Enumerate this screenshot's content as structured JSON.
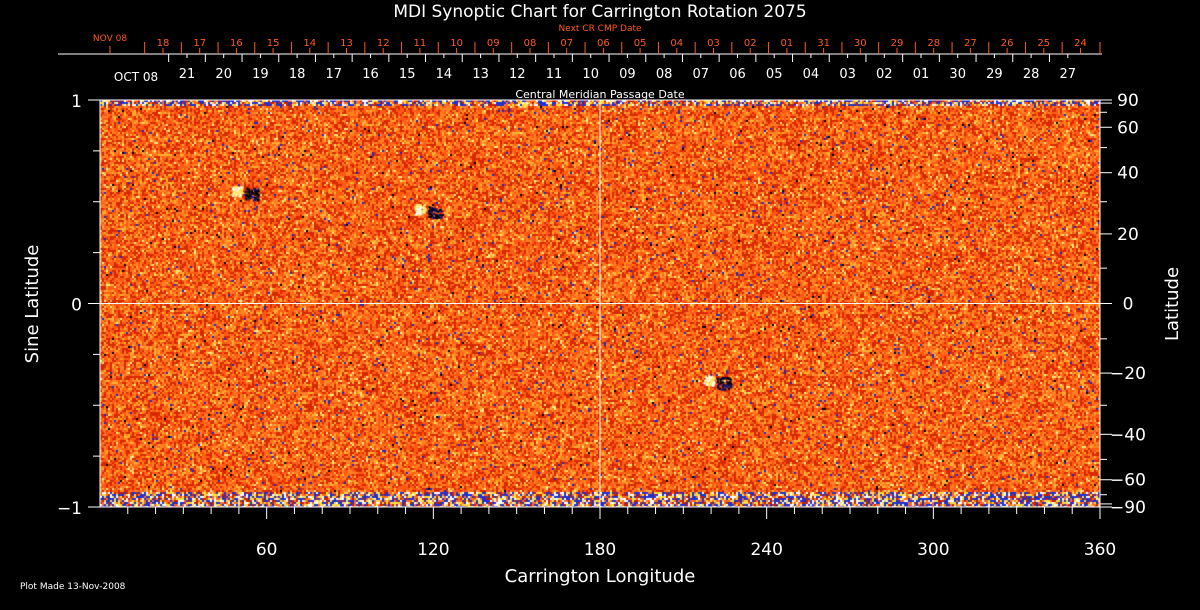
{
  "chart_data": {
    "type": "heatmap",
    "title": "MDI Synoptic Chart for Carrington Rotation 2075",
    "xlabel": "Carrington Longitude",
    "ylabel_left": "Sine Latitude",
    "ylabel_right": "Latitude",
    "xlim": [
      0,
      360
    ],
    "ylim": [
      -1,
      1
    ],
    "x_ticks": [
      60,
      120,
      180,
      240,
      300,
      360
    ],
    "y_ticks_left": [
      {
        "value": 1,
        "label": "1"
      },
      {
        "value": 0,
        "label": "0"
      },
      {
        "value": -1,
        "label": "−1"
      }
    ],
    "y_ticks_right": [
      {
        "value": 90,
        "label": "90"
      },
      {
        "value": 60,
        "label": "60"
      },
      {
        "value": 40,
        "label": "40"
      },
      {
        "value": 20,
        "label": "20"
      },
      {
        "value": 0,
        "label": "0"
      },
      {
        "value": -20,
        "label": "−20"
      },
      {
        "value": -40,
        "label": "−40"
      },
      {
        "value": -60,
        "label": "−60"
      },
      {
        "value": -90,
        "label": "−90"
      }
    ],
    "top_axis_next_cr": {
      "title": "Next CR CMP Date",
      "month_label": "NOV 08",
      "labels": [
        "18",
        "17",
        "16",
        "15",
        "14",
        "13",
        "12",
        "11",
        "10",
        "09",
        "08",
        "07",
        "06",
        "05",
        "04",
        "03",
        "02",
        "01",
        "31",
        "30",
        "29",
        "28",
        "27",
        "26",
        "25",
        "24"
      ],
      "color": "#ff5a1e"
    },
    "top_axis_cmp": {
      "title": "Central Meridian Passage Date",
      "month_label": "OCT 08",
      "labels": [
        "21",
        "20",
        "19",
        "18",
        "17",
        "16",
        "15",
        "14",
        "13",
        "12",
        "11",
        "10",
        "09",
        "08",
        "07",
        "06",
        "05",
        "04",
        "03",
        "02",
        "01",
        "30",
        "29",
        "28",
        "27"
      ],
      "color": "#ffffff"
    },
    "grid": "center cross lines at longitude 180 and latitude 0",
    "colormap": [
      "#000000",
      "#2222c8",
      "#c81e00",
      "#ff5a14",
      "#ff8c1e",
      "#ffd23c",
      "#ffffff"
    ],
    "features": [
      {
        "lon": 52,
        "sinlat": 0.55,
        "type": "bipolar active region"
      },
      {
        "lon": 118,
        "sinlat": 0.46,
        "type": "bipolar active region"
      },
      {
        "lon": 222,
        "sinlat": -0.38,
        "type": "bipolar active region"
      }
    ]
  },
  "footer": {
    "plot_made": "Plot Made 13-Nov-2008"
  }
}
